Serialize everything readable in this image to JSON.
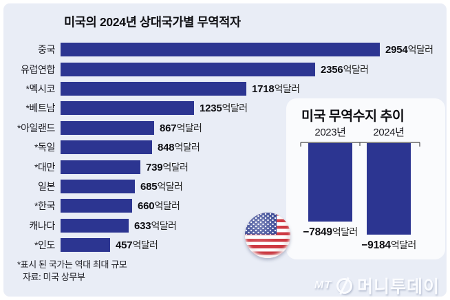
{
  "colors": {
    "bar": "#2c3591",
    "background": "#e9edf6",
    "card": "#fafbfd",
    "flag_red": "#cf3a43",
    "flag_blue": "#2c3c8e",
    "axis_line": "#4a4a4a"
  },
  "chart_data": [
    {
      "type": "bar",
      "orientation": "horizontal",
      "title": "미국의 2024년 상대국가별 무역적자",
      "unit": "억달러",
      "categories": [
        "중국",
        "유럽연합",
        "*멕시코",
        "*베트남",
        "*아일랜드",
        "*독일",
        "*대만",
        "일본",
        "*한국",
        "캐나다",
        "*인도"
      ],
      "values": [
        2954,
        2356,
        1718,
        1235,
        867,
        848,
        739,
        685,
        660,
        633,
        457
      ],
      "xlim": [
        0,
        2954
      ],
      "grid": false,
      "legend": "none"
    },
    {
      "type": "bar",
      "orientation": "vertical",
      "title": "미국 무역수지 추이",
      "unit": "억달러",
      "categories": [
        "2023년",
        "2024년"
      ],
      "values": [
        -7849,
        -9184
      ],
      "value_labels": [
        "−7849",
        "−9184"
      ],
      "ylim": [
        -9184,
        0
      ],
      "grid": false,
      "legend": "none"
    }
  ],
  "footnotes": {
    "note": "*표시 된 국가는 역대 최대 규모",
    "source": "자료: 미국 상무부"
  },
  "logo": {
    "mt": "MT",
    "name": "머니투데이"
  }
}
